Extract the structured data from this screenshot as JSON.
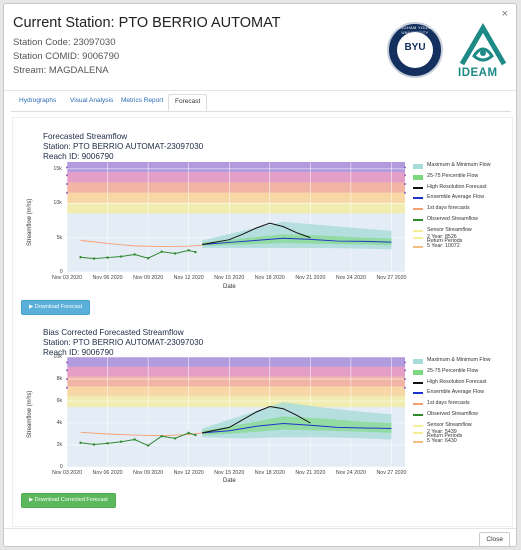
{
  "header": {
    "title": "Current Station: PTO BERRIO AUTOMAT",
    "station_code": "Station Code: 23097030",
    "station_comid": "Station COMID: 9006790",
    "stream": "Stream: MAGDALENA",
    "close": "×"
  },
  "logos": {
    "byu_text": "BYU",
    "byu_arc": "BRIGHAM YOUNG UNIVERSITY",
    "ideam_text": "IDEAM"
  },
  "tabs": [
    {
      "label": "Hydrographs"
    },
    {
      "label": "Visual Analysis"
    },
    {
      "label": "Metrics Report"
    },
    {
      "label": "Forecast",
      "active": true
    }
  ],
  "buttons": {
    "download_forecast": "▶ Download Forecast",
    "download_corrected": "▶ Download Corrected Forecast",
    "close": "Close"
  },
  "colors": {
    "accent_blue": "#5bb0d9",
    "accent_green": "#5cb85c",
    "plot_bg": "#e4ecf6",
    "rp_5yr": "#a27fd6",
    "rp_2yr": "#f6ee9a",
    "hires": "#111111",
    "ensemble": "#1e34c9",
    "observed": "#2e8a2e",
    "past": "#f5a070",
    "band_maxmin": "#a8dcd8",
    "band_2575": "#7dd87d"
  },
  "chart_data": [
    {
      "type": "line",
      "title": "Forecasted Streamflow",
      "subtitle": "Station: PTO BERRIO AUTOMAT-23097030",
      "subtitle2": "Reach ID: 9006790",
      "xlabel": "Date",
      "ylabel": "Streamflow (m³/s)",
      "ylim": [
        0,
        16000
      ],
      "ytick_values": [
        0,
        5000,
        10000,
        15000
      ],
      "ytick_labels": [
        "0",
        "5k",
        "10k",
        "15k"
      ],
      "xlim": [
        "2020-11-03",
        "2020-11-28"
      ],
      "xtick_values": [
        "2020-11-03",
        "2020-11-06",
        "2020-11-09",
        "2020-11-12",
        "2020-11-15",
        "2020-11-18",
        "2020-11-21",
        "2020-11-24",
        "2020-11-27"
      ],
      "xtick_labels": [
        "Nov 03 2020",
        "Nov 06 2020",
        "Nov 09 2020",
        "Nov 12 2020",
        "Nov 15 2020",
        "Nov 18 2020",
        "Nov 21 2020",
        "Nov 24 2020",
        "Nov 27 2020"
      ],
      "return_periods": {
        "2 Year": 8526,
        "5 Year": 10072
      },
      "return_period_labels": [
        "2 Year: 8526",
        "5 Year: 10072"
      ],
      "legend": [
        "Maximum & Minimum Flow",
        "25-75 Percentile Flow",
        "High Resolution Forecast",
        "Ensemble Average Flow",
        "1st days forecasts",
        "Observed Streamflow",
        "Sensor Streamflow",
        "Return Periods"
      ],
      "series": [
        {
          "name": "Observed Streamflow",
          "x": [
            "2020-11-04",
            "2020-11-05",
            "2020-11-06",
            "2020-11-07",
            "2020-11-08",
            "2020-11-09",
            "2020-11-10",
            "2020-11-11",
            "2020-11-12",
            "2020-11-12.5"
          ],
          "values": [
            2150,
            1950,
            2100,
            2250,
            2550,
            2000,
            2950,
            2700,
            3150,
            2900
          ]
        },
        {
          "name": "1st days forecasts",
          "x": [
            "2020-11-04",
            "2020-11-06",
            "2020-11-08",
            "2020-11-10",
            "2020-11-12",
            "2020-11-13"
          ],
          "values": [
            4600,
            4150,
            3800,
            3700,
            3750,
            3900
          ]
        },
        {
          "name": "Ensemble Average Flow",
          "x": [
            "2020-11-13",
            "2020-11-15",
            "2020-11-17",
            "2020-11-19",
            "2020-11-21",
            "2020-11-23",
            "2020-11-25",
            "2020-11-27"
          ],
          "values": [
            4000,
            4300,
            4600,
            4900,
            4750,
            4500,
            4450,
            4350
          ]
        },
        {
          "name": "High Resolution Forecast",
          "x": [
            "2020-11-13",
            "2020-11-15",
            "2020-11-16",
            "2020-11-17",
            "2020-11-18",
            "2020-11-19",
            "2020-11-20",
            "2020-11-21"
          ],
          "values": [
            4000,
            4700,
            5500,
            6400,
            7100,
            6600,
            5700,
            5000
          ]
        },
        {
          "name": "25-75 Percentile Flow",
          "x": [
            "2020-11-13",
            "2020-11-16",
            "2020-11-19",
            "2020-11-22",
            "2020-11-25",
            "2020-11-27"
          ],
          "low": [
            3800,
            4000,
            4200,
            4100,
            4000,
            3900
          ],
          "high": [
            4300,
            4900,
            5500,
            5300,
            5000,
            4900
          ]
        },
        {
          "name": "Maximum & Minimum Flow",
          "x": [
            "2020-11-13",
            "2020-11-16",
            "2020-11-19",
            "2020-11-22",
            "2020-11-25",
            "2020-11-27"
          ],
          "low": [
            3500,
            3500,
            3500,
            3500,
            3400,
            3300
          ],
          "high": [
            4600,
            6000,
            7300,
            6800,
            6300,
            6000
          ]
        }
      ]
    },
    {
      "type": "line",
      "title": "Bias Corrected Forecasted Streamflow",
      "subtitle": "Station: PTO BERRIO AUTOMAT-23097030",
      "subtitle2": "Reach ID: 9006790",
      "xlabel": "Date",
      "ylabel": "Streamflow (m³/s)",
      "ylim": [
        0,
        10000
      ],
      "ytick_values": [
        0,
        2000,
        4000,
        6000,
        8000,
        10000
      ],
      "ytick_labels": [
        "0",
        "2k",
        "4k",
        "6k",
        "8k",
        "10k"
      ],
      "xlim": [
        "2020-11-03",
        "2020-11-28"
      ],
      "xtick_values": [
        "2020-11-03",
        "2020-11-06",
        "2020-11-09",
        "2020-11-12",
        "2020-11-15",
        "2020-11-18",
        "2020-11-21",
        "2020-11-24",
        "2020-11-27"
      ],
      "xtick_labels": [
        "Nov 03 2020",
        "Nov 06 2020",
        "Nov 09 2020",
        "Nov 12 2020",
        "Nov 15 2020",
        "Nov 18 2020",
        "Nov 21 2020",
        "Nov 24 2020",
        "Nov 27 2020"
      ],
      "return_periods": {
        "2 Year": 5439,
        "5 Year": 6430
      },
      "return_period_labels": [
        "2 Year: 5439",
        "5 Year: 6430"
      ],
      "legend": [
        "Maximum & Minimum Flow",
        "25-75 Percentile Flow",
        "High Resolution Forecast",
        "Ensemble Average Flow",
        "1st days forecasts",
        "Observed Streamflow",
        "Sensor Streamflow",
        "Return Periods"
      ],
      "series": [
        {
          "name": "Observed Streamflow",
          "x": [
            "2020-11-04",
            "2020-11-05",
            "2020-11-06",
            "2020-11-07",
            "2020-11-08",
            "2020-11-09",
            "2020-11-10",
            "2020-11-11",
            "2020-11-12",
            "2020-11-12.5"
          ],
          "values": [
            2200,
            2050,
            2150,
            2300,
            2500,
            1950,
            2800,
            2600,
            3100,
            2900
          ]
        },
        {
          "name": "1st days forecasts",
          "x": [
            "2020-11-04",
            "2020-11-06",
            "2020-11-08",
            "2020-11-10",
            "2020-11-12",
            "2020-11-13"
          ],
          "values": [
            3150,
            3000,
            2900,
            2850,
            2950,
            3100
          ]
        },
        {
          "name": "Ensemble Average Flow",
          "x": [
            "2020-11-13",
            "2020-11-15",
            "2020-11-17",
            "2020-11-19",
            "2020-11-21",
            "2020-11-23",
            "2020-11-25",
            "2020-11-27"
          ],
          "values": [
            3100,
            3300,
            3700,
            3950,
            3800,
            3600,
            3550,
            3500
          ]
        },
        {
          "name": "High Resolution Forecast",
          "x": [
            "2020-11-13",
            "2020-11-15",
            "2020-11-16",
            "2020-11-17",
            "2020-11-18",
            "2020-11-19",
            "2020-11-20",
            "2020-11-21"
          ],
          "values": [
            3100,
            3600,
            4300,
            5000,
            5500,
            5300,
            4700,
            4000
          ]
        },
        {
          "name": "25-75 Percentile Flow",
          "x": [
            "2020-11-13",
            "2020-11-16",
            "2020-11-19",
            "2020-11-22",
            "2020-11-25",
            "2020-11-27"
          ],
          "low": [
            2900,
            3100,
            3400,
            3300,
            3200,
            3100
          ],
          "high": [
            3300,
            3900,
            4600,
            4400,
            4100,
            4000
          ]
        },
        {
          "name": "Maximum & Minimum Flow",
          "x": [
            "2020-11-13",
            "2020-11-16",
            "2020-11-19",
            "2020-11-22",
            "2020-11-25",
            "2020-11-27"
          ],
          "low": [
            2700,
            2600,
            2700,
            2700,
            2600,
            2500
          ],
          "high": [
            3500,
            4700,
            5900,
            5400,
            5000,
            4800
          ]
        }
      ]
    }
  ]
}
